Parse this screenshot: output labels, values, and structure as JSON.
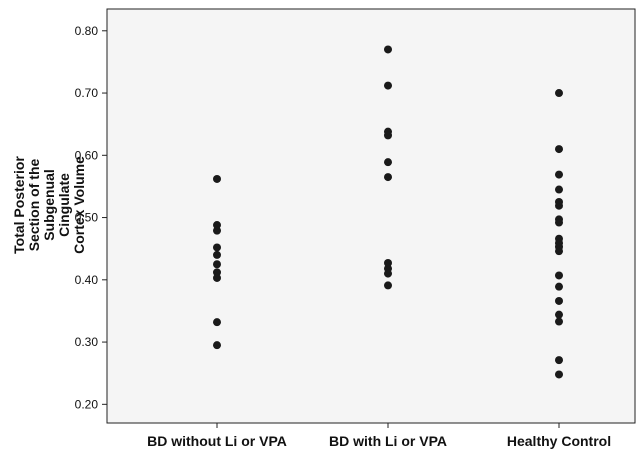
{
  "chart_data": {
    "type": "scatter",
    "title": "",
    "xlabel": "",
    "ylabel_lines": [
      "Total Posterior",
      "Section of the",
      "Subgenual",
      "Cingulate",
      "Cortex Volume"
    ],
    "categories": [
      "BD without Li or VPA",
      "BD with Li or VPA",
      "Healthy Control"
    ],
    "ylim": [
      0.17,
      0.835
    ],
    "yticks": [
      "0.20",
      "0.30",
      "0.40",
      "0.50",
      "0.60",
      "0.70",
      "0.80"
    ],
    "grid": false,
    "marker_color": "#1a1a1a",
    "plot_background": "#f5f5f5",
    "series": [
      {
        "category": "BD without Li or VPA",
        "values": [
          0.562,
          0.488,
          0.479,
          0.452,
          0.44,
          0.425,
          0.412,
          0.403,
          0.332,
          0.295
        ]
      },
      {
        "category": "BD with Li or VPA",
        "values": [
          0.77,
          0.712,
          0.638,
          0.632,
          0.589,
          0.565,
          0.427,
          0.418,
          0.41,
          0.391
        ]
      },
      {
        "category": "Healthy Control",
        "values": [
          0.7,
          0.61,
          0.569,
          0.545,
          0.525,
          0.519,
          0.497,
          0.492,
          0.466,
          0.459,
          0.453,
          0.446,
          0.407,
          0.389,
          0.366,
          0.344,
          0.333,
          0.271,
          0.248
        ]
      }
    ]
  }
}
